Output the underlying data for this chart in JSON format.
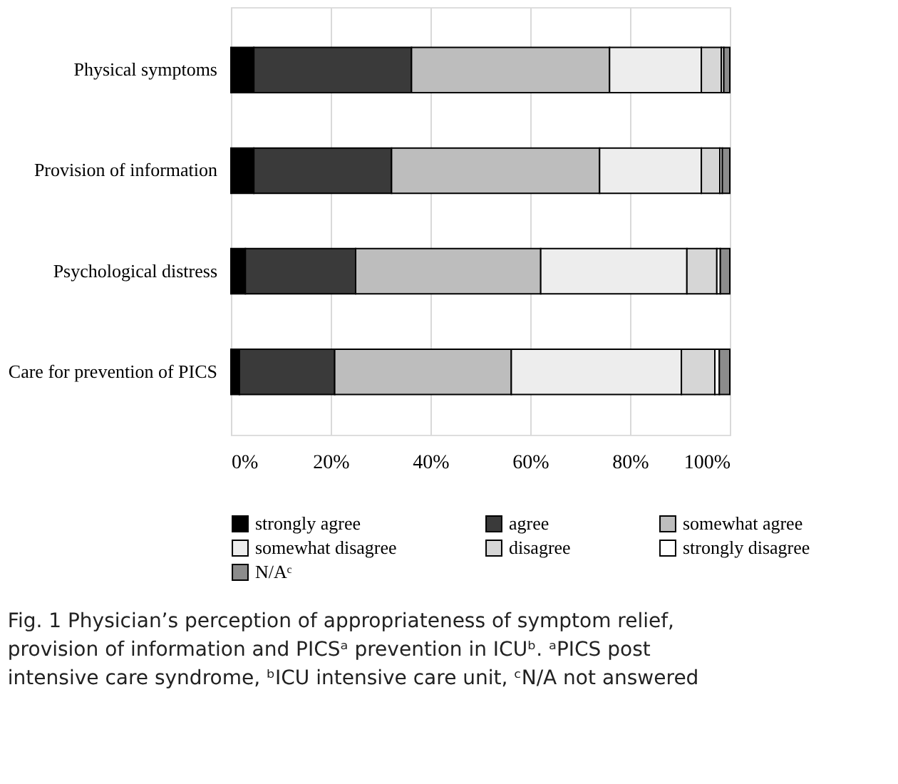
{
  "chart_data": {
    "type": "bar",
    "orientation": "horizontal",
    "stacked": true,
    "categories": [
      "Physical symptoms",
      "Provision of information",
      "Psychological distress",
      "Care for prevention of PICS"
    ],
    "series": [
      {
        "name": "strongly agree",
        "color": "#000000",
        "values": [
          4.6,
          4.6,
          2.9,
          1.7
        ]
      },
      {
        "name": "agree",
        "color": "#3a3a3a",
        "values": [
          31.6,
          27.6,
          22.1,
          19.1
        ]
      },
      {
        "name": "somewhat agree",
        "color": "#bdbdbd",
        "values": [
          39.7,
          41.7,
          37.1,
          35.4
        ]
      },
      {
        "name": "somewhat disagree",
        "color": "#ededed",
        "values": [
          18.4,
          20.4,
          29.3,
          34.1
        ]
      },
      {
        "name": "disagree",
        "color": "#d6d6d6",
        "values": [
          4.0,
          3.7,
          6.0,
          6.7
        ]
      },
      {
        "name": "strongly disagree",
        "color": "#ffffff",
        "values": [
          0.5,
          0.5,
          0.7,
          0.9
        ]
      },
      {
        "name": "N/Aᶜ",
        "color": "#8c8c8c",
        "values": [
          1.2,
          1.5,
          1.9,
          2.1
        ]
      }
    ],
    "xlim": [
      0,
      100
    ],
    "xticks": [
      {
        "value": 0,
        "label": "0%"
      },
      {
        "value": 20,
        "label": "20%"
      },
      {
        "value": 40,
        "label": "40%"
      },
      {
        "value": 60,
        "label": "60%"
      },
      {
        "value": 80,
        "label": "80%"
      },
      {
        "value": 100,
        "label": "100%"
      }
    ],
    "grid": "x",
    "legend": "bottom",
    "annotations": [
      "Fig. 1  Physician’s perception of appropriateness of symptom relief, provision of information and PICSᵃ prevention in ICUᵇ. ᵃPICS post intensive care syndrome, ᵇICU intensive care unit, ᶜN/A not answered"
    ]
  }
}
